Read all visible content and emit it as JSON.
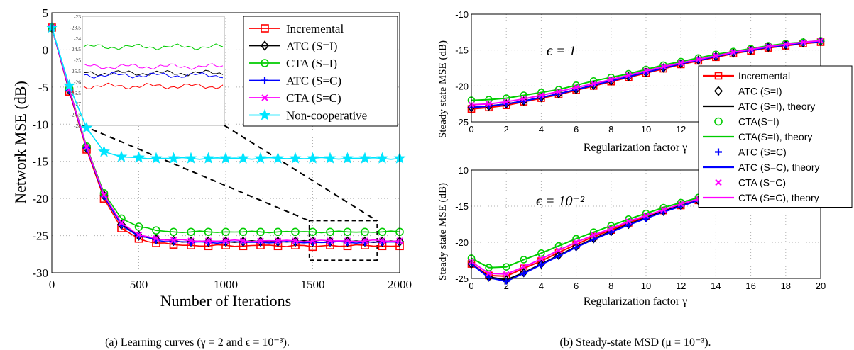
{
  "colors": {
    "incremental": "#ff0000",
    "atc_si": "#000000",
    "cta_si": "#00cc00",
    "atc_sc": "#0000ff",
    "cta_sc": "#ff00ff",
    "noncoop": "#00e5ff"
  },
  "chart_data": [
    {
      "type": "line",
      "caption": "(a) Learning curves (γ = 2 and ϵ = 10⁻³).",
      "xlabel": "Number of Iterations",
      "ylabel": "Network MSE (dB)",
      "xlim": [
        0,
        2000
      ],
      "ylim": [
        -30,
        5
      ],
      "xticks": [
        "0",
        "500",
        "1000",
        "1500",
        "2000"
      ],
      "yticks": [
        "5",
        "0",
        "-5",
        "-10",
        "-15",
        "-20",
        "-25",
        "-30"
      ],
      "grid": true,
      "legend_position": "top-right",
      "x": [
        0,
        100,
        200,
        300,
        400,
        500,
        600,
        700,
        800,
        900,
        1000,
        1100,
        1200,
        1300,
        1400,
        1500,
        1600,
        1700,
        1800,
        1900,
        2000
      ],
      "series": [
        {
          "name": "Incremental",
          "key": "incremental",
          "marker": "square",
          "values": [
            3,
            -5.6,
            -13.4,
            -20,
            -24,
            -25.4,
            -26,
            -26.2,
            -26.3,
            -26.4,
            -26.3,
            -26.4,
            -26.3,
            -26.4,
            -26.3,
            -26.5,
            -26.3,
            -26.4,
            -26.3,
            -26.4,
            -26.4
          ]
        },
        {
          "name": "ATC (S=I)",
          "key": "atc_si",
          "marker": "diamond",
          "values": [
            3,
            -5.4,
            -13.2,
            -19.6,
            -23.5,
            -25,
            -25.5,
            -25.7,
            -25.8,
            -25.8,
            -25.8,
            -25.8,
            -25.8,
            -25.8,
            -25.8,
            -25.8,
            -25.8,
            -25.8,
            -25.8,
            -25.8,
            -25.8
          ]
        },
        {
          "name": "CTA (S=I)",
          "key": "cta_si",
          "marker": "circle",
          "values": [
            3,
            -5.2,
            -13,
            -19.3,
            -22.7,
            -23.8,
            -24.3,
            -24.5,
            -24.5,
            -24.5,
            -24.5,
            -24.5,
            -24.5,
            -24.5,
            -24.5,
            -24.5,
            -24.5,
            -24.5,
            -24.5,
            -24.5,
            -24.5
          ]
        },
        {
          "name": "ATC (S=C)",
          "key": "atc_sc",
          "marker": "plus",
          "values": [
            3,
            -5.4,
            -13.2,
            -19.7,
            -23.6,
            -25.1,
            -25.6,
            -25.8,
            -25.9,
            -25.9,
            -25.9,
            -25.9,
            -25.9,
            -25.9,
            -25.9,
            -25.9,
            -25.9,
            -25.9,
            -25.9,
            -25.9,
            -25.9
          ]
        },
        {
          "name": "CTA (S=C)",
          "key": "cta_sc",
          "marker": "x",
          "values": [
            3,
            -5.3,
            -13.1,
            -19.5,
            -23.3,
            -24.9,
            -25.4,
            -25.6,
            -25.7,
            -25.7,
            -25.7,
            -25.7,
            -25.7,
            -25.7,
            -25.7,
            -25.7,
            -25.7,
            -25.7,
            -25.7,
            -25.7,
            -25.7
          ]
        },
        {
          "name": "Non-cooperative",
          "key": "noncoop",
          "marker": "star",
          "values": [
            3,
            -4.8,
            -10.5,
            -13.7,
            -14.4,
            -14.5,
            -14.6,
            -14.6,
            -14.6,
            -14.6,
            -14.6,
            -14.6,
            -14.6,
            -14.6,
            -14.6,
            -14.6,
            -14.6,
            -14.6,
            -14.6,
            -14.6,
            -14.6
          ]
        }
      ],
      "inset": {
        "ylim": [
          -28,
          -23
        ],
        "yticks": [
          "-23",
          "-23.5",
          "-24",
          "-24.5",
          "-25",
          "-25.5",
          "-26",
          "-26.5",
          "-27",
          "-27.5",
          "-28"
        ],
        "xlim": [
          1500,
          2000
        ],
        "levels": {
          "cta_si": -24.4,
          "cta_sc": -25.3,
          "atc_si": -25.6,
          "atc_sc": -25.7,
          "incremental": -26.2
        }
      },
      "zoom_box": {
        "x": [
          1480,
          1870
        ],
        "y": [
          -23,
          -28.3
        ]
      }
    },
    {
      "type": "line",
      "caption": "(b) Steady-state MSD (μ = 10⁻³).",
      "xlabel": "Regularization factor γ",
      "ylabel": "Steady state MSE (dB)",
      "xlim": [
        0,
        20
      ],
      "ylim": [
        -25,
        -10
      ],
      "xticks": [
        "0",
        "2",
        "4",
        "6",
        "8",
        "10",
        "12",
        "14",
        "16",
        "18",
        "20"
      ],
      "grid": true,
      "legend_position": "right",
      "legend": [
        {
          "label": "Incremental",
          "key": "incremental",
          "marker": "square-line"
        },
        {
          "label": "ATC (S=I)",
          "key": "atc_si",
          "marker": "diamond"
        },
        {
          "label": "ATC (S=I), theory",
          "key": "atc_si",
          "marker": "line"
        },
        {
          "label": "CTA(S=I)",
          "key": "cta_si",
          "marker": "circle"
        },
        {
          "label": "CTA(S=I), theory",
          "key": "cta_si",
          "marker": "line"
        },
        {
          "label": "ATC (S=C)",
          "key": "atc_sc",
          "marker": "plus"
        },
        {
          "label": "ATC (S=C), theory",
          "key": "atc_sc",
          "marker": "line"
        },
        {
          "label": "CTA (S=C)",
          "key": "cta_sc",
          "marker": "x"
        },
        {
          "label": "CTA (S=C), theory",
          "key": "cta_sc",
          "marker": "line"
        }
      ],
      "x": [
        0,
        1,
        2,
        3,
        4,
        5,
        6,
        7,
        8,
        9,
        10,
        11,
        12,
        13,
        14,
        15,
        16,
        17,
        18,
        19,
        20
      ],
      "subplots": [
        {
          "annotation": "ϵ = 1",
          "yticks": [
            "-10",
            "-15",
            "-20",
            "-25"
          ],
          "series": {
            "incremental": [
              -23.2,
              -23,
              -22.7,
              -22.2,
              -21.7,
              -21.2,
              -20.6,
              -20,
              -19.4,
              -18.8,
              -18.2,
              -17.6,
              -17,
              -16.5,
              -16,
              -15.5,
              -15.1,
              -14.7,
              -14.4,
              -14.1,
              -13.9
            ],
            "atc_si": [
              -23.0,
              -22.8,
              -22.5,
              -22.1,
              -21.6,
              -21.1,
              -20.5,
              -19.9,
              -19.3,
              -18.7,
              -18.1,
              -17.5,
              -16.9,
              -16.4,
              -15.9,
              -15.4,
              -15.0,
              -14.6,
              -14.3,
              -14.0,
              -13.8
            ],
            "cta_si": [
              -22.0,
              -21.9,
              -21.7,
              -21.3,
              -20.9,
              -20.5,
              -19.9,
              -19.3,
              -18.8,
              -18.3,
              -17.7,
              -17.1,
              -16.6,
              -16.1,
              -15.6,
              -15.2,
              -14.8,
              -14.4,
              -14.1,
              -13.9,
              -13.7
            ],
            "atc_sc": [
              -23.0,
              -22.8,
              -22.5,
              -22.1,
              -21.6,
              -21.1,
              -20.5,
              -19.9,
              -19.3,
              -18.7,
              -18.1,
              -17.5,
              -16.9,
              -16.4,
              -15.9,
              -15.4,
              -15.0,
              -14.6,
              -14.3,
              -14.0,
              -13.8
            ],
            "cta_sc": [
              -22.6,
              -22.5,
              -22.2,
              -21.8,
              -21.3,
              -20.8,
              -20.2,
              -19.7,
              -19.1,
              -18.5,
              -17.9,
              -17.3,
              -16.8,
              -16.3,
              -15.8,
              -15.3,
              -14.9,
              -14.5,
              -14.2,
              -13.9,
              -13.7
            ]
          }
        },
        {
          "annotation": "ϵ = 10⁻²",
          "yticks": [
            "-10",
            "-15",
            "-20",
            "-25"
          ],
          "series": {
            "incremental": [
              -23.0,
              -24.6,
              -24.7,
              -23.6,
              -22.6,
              -21.4,
              -20.3,
              -19.2,
              -18.3,
              -17.3,
              -16.4,
              -15.6,
              -14.9,
              -14.2,
              -13.5,
              -12.9,
              -12.3,
              -11.8,
              -11.3,
              -10.9,
              -10.5
            ],
            "atc_si": [
              -23.0,
              -24.8,
              -25.2,
              -24.2,
              -23.0,
              -21.8,
              -20.6,
              -19.5,
              -18.5,
              -17.5,
              -16.6,
              -15.7,
              -14.9,
              -14.2,
              -13.5,
              -12.9,
              -12.3,
              -11.8,
              -11.3,
              -10.9,
              -10.5
            ],
            "cta_si": [
              -22.2,
              -23.5,
              -23.4,
              -22.4,
              -21.5,
              -20.5,
              -19.5,
              -18.6,
              -17.7,
              -16.8,
              -16.0,
              -15.2,
              -14.5,
              -13.8,
              -13.2,
              -12.6,
              -12.1,
              -11.6,
              -11.1,
              -10.7,
              -10.3
            ],
            "atc_sc": [
              -23.0,
              -24.9,
              -25.4,
              -24.3,
              -23.1,
              -21.9,
              -20.7,
              -19.6,
              -18.6,
              -17.6,
              -16.7,
              -15.8,
              -15.0,
              -14.2,
              -13.5,
              -12.9,
              -12.3,
              -11.8,
              -11.3,
              -10.9,
              -10.5
            ],
            "cta_sc": [
              -22.7,
              -24.3,
              -24.4,
              -23.4,
              -22.3,
              -21.1,
              -20.0,
              -19.0,
              -18.1,
              -17.1,
              -16.3,
              -15.5,
              -14.7,
              -14.0,
              -13.4,
              -12.8,
              -12.2,
              -11.7,
              -11.2,
              -10.8,
              -10.4
            ]
          }
        }
      ]
    }
  ]
}
